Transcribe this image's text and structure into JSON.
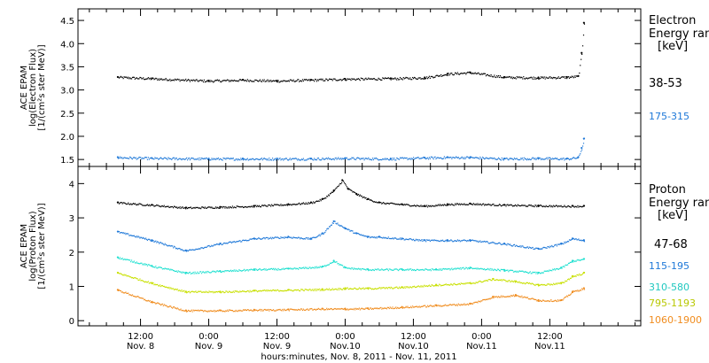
{
  "chart_data": [
    {
      "type": "scatter",
      "panel": "electron",
      "ylabel_lines": [
        "ACE EPAM",
        "log(Electron Flux)",
        "[1/(cm²s ster MeV)]"
      ],
      "ylim": [
        1.35,
        4.75
      ],
      "yticks": [
        1.5,
        2.0,
        2.5,
        3.0,
        3.5,
        4.0,
        4.5
      ],
      "ytick_labels": [
        "1.5",
        "2.0",
        "2.5",
        "3.0",
        "3.5",
        "4.0",
        "4.5"
      ],
      "legend_title": [
        "Electron",
        "Energy ran"
      ],
      "legend_unit": "[keV]",
      "series": [
        {
          "name": "38-53",
          "color": "#000000",
          "x": [
            8.0,
            14.0,
            24.0,
            30.0,
            36.0,
            42.0,
            48.0,
            56.0,
            62.0,
            66.0,
            70.0,
            76.0,
            82.0,
            87.0,
            89.0,
            89.6,
            90.0
          ],
          "values": [
            3.28,
            3.25,
            3.2,
            3.22,
            3.2,
            3.22,
            3.24,
            3.25,
            3.27,
            3.35,
            3.38,
            3.28,
            3.27,
            3.28,
            3.3,
            3.8,
            4.45
          ]
        },
        {
          "name": "175-315",
          "color": "#1e78d8",
          "x": [
            8.0,
            14.0,
            24.0,
            30.0,
            36.0,
            42.0,
            48.0,
            56.0,
            62.0,
            66.0,
            70.0,
            76.0,
            82.0,
            87.0,
            89.0,
            89.6,
            90.0
          ],
          "values": [
            1.55,
            1.53,
            1.52,
            1.52,
            1.52,
            1.52,
            1.53,
            1.52,
            1.54,
            1.55,
            1.55,
            1.52,
            1.53,
            1.52,
            1.55,
            1.75,
            1.95
          ]
        }
      ]
    },
    {
      "type": "scatter",
      "panel": "proton",
      "ylabel_lines": [
        "ACE EPAM",
        "log(Proton Flux)",
        "[1/(cm²s ster MeV)]"
      ],
      "ylim": [
        -0.15,
        4.5
      ],
      "yticks": [
        0,
        1,
        2,
        3,
        4
      ],
      "ytick_labels": [
        "0",
        "1",
        "2",
        "3",
        "4"
      ],
      "legend_title": [
        "Proton",
        "Energy ran"
      ],
      "legend_unit": "[keV]",
      "series": [
        {
          "name": "47-68",
          "color": "#000000",
          "x": [
            8.0,
            14.0,
            20.0,
            26.0,
            32.0,
            38.0,
            42.0,
            44.0,
            46.0,
            47.5,
            48.5,
            50.0,
            52.0,
            54.0,
            58.0,
            62.0,
            66.0,
            70.0,
            76.0,
            82.0,
            88.0,
            90.0
          ],
          "values": [
            3.45,
            3.38,
            3.3,
            3.32,
            3.35,
            3.4,
            3.45,
            3.55,
            3.8,
            4.1,
            3.85,
            3.7,
            3.55,
            3.45,
            3.4,
            3.35,
            3.4,
            3.42,
            3.38,
            3.36,
            3.35,
            3.35
          ]
        },
        {
          "name": "115-195",
          "color": "#1e78d8",
          "x": [
            8.0,
            14.0,
            20.0,
            26.0,
            32.0,
            38.0,
            42.0,
            44.0,
            46.0,
            48.0,
            50.0,
            52.0,
            54.0,
            58.0,
            62.0,
            66.0,
            70.0,
            76.0,
            82.0,
            86.0,
            88.0,
            90.0
          ],
          "values": [
            2.6,
            2.35,
            2.05,
            2.25,
            2.4,
            2.45,
            2.4,
            2.55,
            2.9,
            2.7,
            2.55,
            2.45,
            2.45,
            2.4,
            2.35,
            2.35,
            2.35,
            2.25,
            2.1,
            2.25,
            2.4,
            2.35
          ]
        },
        {
          "name": "310-580",
          "color": "#20e0d0",
          "x": [
            8.0,
            14.0,
            20.0,
            26.0,
            32.0,
            38.0,
            44.0,
            46.0,
            48.0,
            52.0,
            58.0,
            64.0,
            70.0,
            76.0,
            82.0,
            86.0,
            88.0,
            90.0
          ],
          "values": [
            1.85,
            1.6,
            1.4,
            1.45,
            1.5,
            1.52,
            1.58,
            1.75,
            1.55,
            1.5,
            1.5,
            1.5,
            1.55,
            1.48,
            1.4,
            1.55,
            1.75,
            1.8
          ]
        },
        {
          "name": "795-1193",
          "color": "#c8e000",
          "x": [
            8.0,
            14.0,
            20.0,
            26.0,
            32.0,
            38.0,
            44.0,
            48.0,
            52.0,
            58.0,
            64.0,
            70.0,
            74.0,
            78.0,
            82.0,
            86.0,
            88.0,
            90.0
          ],
          "values": [
            1.4,
            1.1,
            0.85,
            0.85,
            0.88,
            0.9,
            0.92,
            0.95,
            0.95,
            0.98,
            1.05,
            1.1,
            1.22,
            1.15,
            1.05,
            1.1,
            1.3,
            1.4
          ]
        },
        {
          "name": "1060-1900",
          "color": "#f08c1e",
          "x": [
            8.0,
            14.0,
            20.0,
            26.0,
            32.0,
            38.0,
            44.0,
            48.0,
            52.0,
            58.0,
            64.0,
            70.0,
            74.0,
            78.0,
            82.0,
            86.0,
            88.0,
            90.0
          ],
          "values": [
            0.9,
            0.55,
            0.3,
            0.3,
            0.32,
            0.33,
            0.35,
            0.35,
            0.36,
            0.4,
            0.45,
            0.5,
            0.7,
            0.75,
            0.6,
            0.6,
            0.85,
            0.95
          ]
        }
      ]
    }
  ],
  "x_axis": {
    "xlim": [
      1.0,
      100.0
    ],
    "xlabel": "hours:minutes, Nov. 8, 2011 - Nov. 11, 2011",
    "ticks": [
      {
        "x": 12,
        "time": "12:00",
        "day": "Nov. 8"
      },
      {
        "x": 24,
        "time": "0:00",
        "day": "Nov. 9"
      },
      {
        "x": 36,
        "time": "12:00",
        "day": "Nov. 9"
      },
      {
        "x": 48,
        "time": "0:00",
        "day": "Nov.10"
      },
      {
        "x": 60,
        "time": "12:00",
        "day": "Nov.10"
      },
      {
        "x": 72,
        "time": "0:00",
        "day": "Nov.11"
      },
      {
        "x": 84,
        "time": "12:00",
        "day": "Nov.11"
      }
    ]
  }
}
